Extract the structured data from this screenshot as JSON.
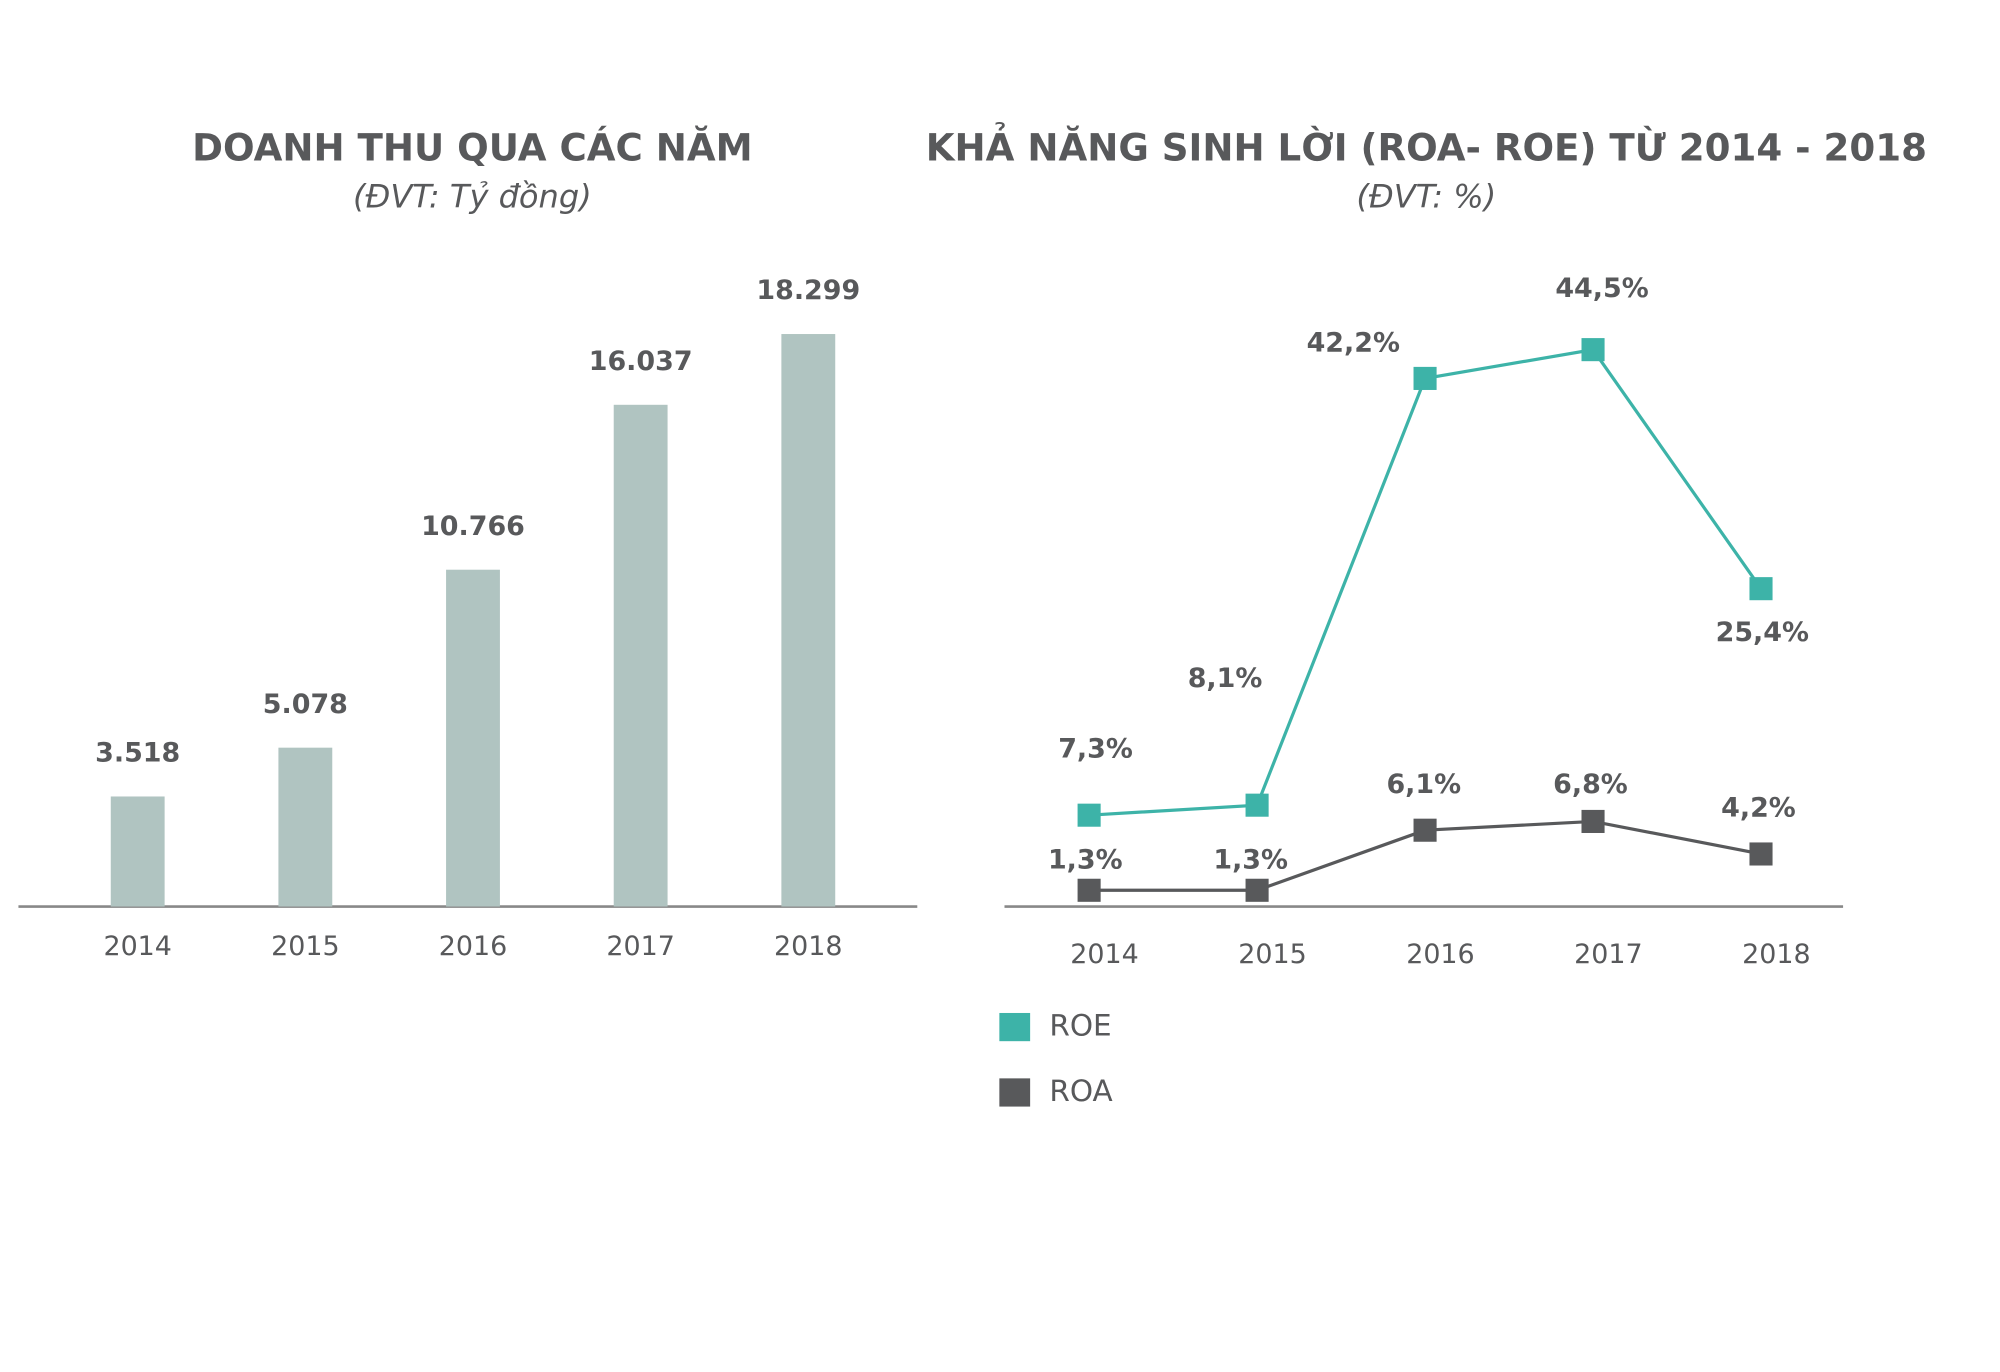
{
  "chart_data": [
    {
      "type": "bar",
      "title": "DOANH THU QUA CÁC NĂM",
      "subtitle": "(ĐVT: Tỷ đồng)",
      "categories": [
        "2014",
        "2015",
        "2016",
        "2017",
        "2018"
      ],
      "values": [
        3518,
        5078,
        10766,
        16037,
        18299
      ],
      "value_labels": [
        "3.518",
        "5.078",
        "10.766",
        "16.037",
        "18.299"
      ],
      "color": "#b0c4c1",
      "ylim": [
        0,
        20000
      ]
    },
    {
      "type": "line",
      "title": "KHẢ NĂNG SINH LỜI (ROA- ROE) TỪ 2014 - 2018",
      "subtitle": "(ĐVT: %)",
      "categories": [
        "2014",
        "2015",
        "2016",
        "2017",
        "2018"
      ],
      "series": [
        {
          "name": "ROE",
          "color": "#3db3a8",
          "values": [
            7.3,
            8.1,
            42.2,
            44.5,
            25.4
          ],
          "value_labels": [
            "7,3%",
            "8,1%",
            "42,2%",
            "44,5%",
            "25,4%"
          ]
        },
        {
          "name": "ROA",
          "color": "#58595b",
          "values": [
            1.3,
            1.3,
            6.1,
            6.8,
            4.2
          ],
          "value_labels": [
            "1,3%",
            "1,3%",
            "6,1%",
            "6,8%",
            "4,2%"
          ]
        }
      ],
      "ylim": [
        0,
        50
      ],
      "legend": "bottom-left"
    }
  ]
}
